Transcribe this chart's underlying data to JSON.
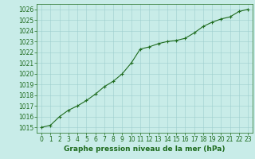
{
  "x": [
    0,
    1,
    2,
    3,
    4,
    5,
    6,
    7,
    8,
    9,
    10,
    11,
    12,
    13,
    14,
    15,
    16,
    17,
    18,
    19,
    20,
    21,
    22,
    23
  ],
  "y": [
    1015.0,
    1015.2,
    1016.0,
    1016.6,
    1017.0,
    1017.5,
    1018.1,
    1018.8,
    1019.3,
    1020.0,
    1021.0,
    1022.3,
    1022.5,
    1022.8,
    1023.0,
    1023.1,
    1023.3,
    1023.8,
    1024.4,
    1024.8,
    1025.1,
    1025.3,
    1025.8,
    1026.0
  ],
  "line_color": "#1e6b1e",
  "marker_color": "#1e6b1e",
  "bg_color": "#c8ece8",
  "grid_color": "#9ecece",
  "axis_label_color": "#1e6b1e",
  "tick_color": "#1e6b1e",
  "xlabel": "Graphe pression niveau de la mer (hPa)",
  "ylim": [
    1014.5,
    1026.5
  ],
  "xlim": [
    -0.5,
    23.5
  ],
  "yticks": [
    1015,
    1016,
    1017,
    1018,
    1019,
    1020,
    1021,
    1022,
    1023,
    1024,
    1025,
    1026
  ],
  "xticks": [
    0,
    1,
    2,
    3,
    4,
    5,
    6,
    7,
    8,
    9,
    10,
    11,
    12,
    13,
    14,
    15,
    16,
    17,
    18,
    19,
    20,
    21,
    22,
    23
  ],
  "marker": "+",
  "linewidth": 0.8,
  "markersize": 3,
  "fontsize_xlabel": 6.5,
  "fontsize_ticks": 5.5
}
